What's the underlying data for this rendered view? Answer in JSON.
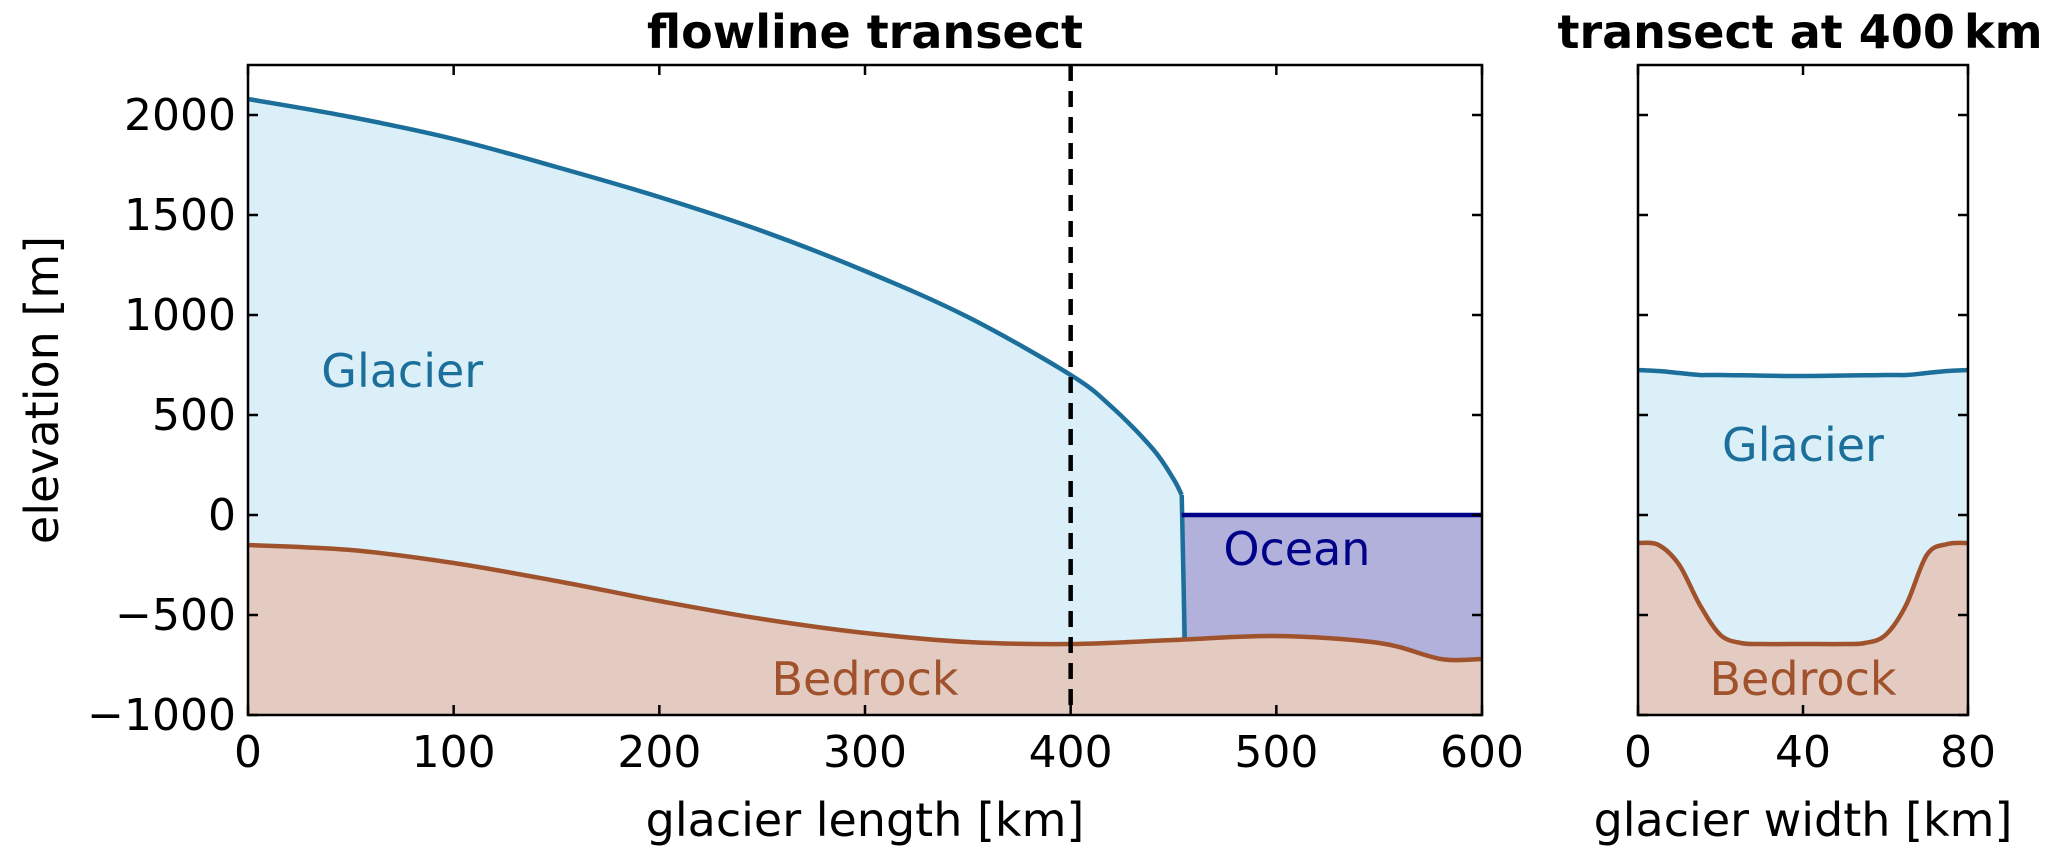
{
  "colors": {
    "glacier_fill": "#daeff8",
    "glacier_line": "#1b6f9a",
    "bedrock_fill": "#e4cbc1",
    "bedrock_line": "#a0522d",
    "ocean_fill": "#b1b1dc",
    "ocean_line": "#000088",
    "marker_line": "#000000"
  },
  "chart_data": [
    {
      "type": "area",
      "title": "flowline transect",
      "xlabel": "glacier length [km]",
      "ylabel": "elevation [m]",
      "xlim": [
        0,
        600
      ],
      "ylim": [
        -1000,
        2250
      ],
      "xticks": [
        0,
        100,
        200,
        300,
        400,
        500,
        600
      ],
      "yticks": [
        -1000,
        -500,
        0,
        500,
        1000,
        1500,
        2000
      ],
      "ytick_labels": [
        "−1000",
        "−500",
        "0",
        "500",
        "1000",
        "1500",
        "2000"
      ],
      "grid": false,
      "series": [
        {
          "name": "Glacier",
          "x": [
            0,
            50,
            100,
            150,
            200,
            250,
            300,
            350,
            400,
            420,
            440,
            450,
            454
          ],
          "y": [
            2080,
            1990,
            1880,
            1740,
            1590,
            1420,
            1220,
            990,
            700,
            540,
            330,
            180,
            100
          ]
        },
        {
          "name": "Bedrock",
          "x": [
            0,
            50,
            100,
            150,
            200,
            250,
            300,
            350,
            400,
            450,
            500,
            550,
            580,
            600
          ],
          "y": [
            -150,
            -175,
            -240,
            -330,
            -430,
            -520,
            -590,
            -635,
            -645,
            -625,
            -605,
            -640,
            -720,
            -720
          ]
        },
        {
          "name": "Ocean",
          "x": [
            454,
            600
          ],
          "y": [
            0,
            0
          ]
        }
      ],
      "marker": {
        "x": 400,
        "style": "dashed"
      }
    },
    {
      "type": "area",
      "title": "transect at 400 km",
      "xlabel": "glacier width [km]",
      "xlim": [
        0,
        80
      ],
      "ylim": [
        -1000,
        2250
      ],
      "xticks": [
        0,
        40,
        80
      ],
      "grid": false,
      "series": [
        {
          "name": "Glacier",
          "x": [
            0,
            5,
            10,
            15,
            20,
            40,
            60,
            65,
            70,
            75,
            80
          ],
          "y": [
            725,
            720,
            710,
            700,
            700,
            695,
            700,
            700,
            710,
            720,
            725
          ]
        },
        {
          "name": "Bedrock",
          "x": [
            0,
            5,
            10,
            15,
            20,
            25,
            30,
            40,
            50,
            55,
            60,
            65,
            70,
            75,
            80
          ],
          "y": [
            -140,
            -150,
            -250,
            -450,
            -600,
            -640,
            -645,
            -645,
            -645,
            -640,
            -600,
            -450,
            -200,
            -145,
            -140
          ]
        }
      ]
    }
  ]
}
